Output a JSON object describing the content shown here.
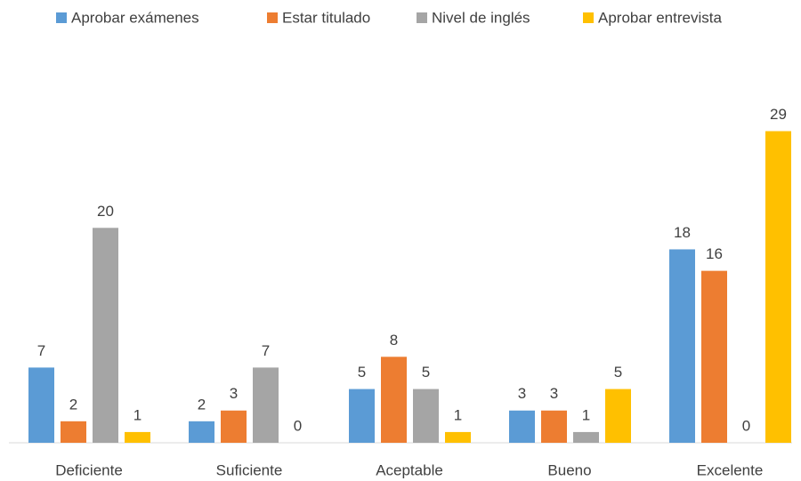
{
  "chart_data": {
    "type": "bar",
    "categories": [
      "Deficiente",
      "Suficiente",
      "Aceptable",
      "Bueno",
      "Excelente"
    ],
    "series": [
      {
        "name": "Aprobar exámenes",
        "color": "#5b9bd5",
        "values": [
          7,
          2,
          5,
          3,
          18
        ]
      },
      {
        "name": "Estar titulado",
        "color": "#ed7d31",
        "values": [
          2,
          3,
          8,
          3,
          16
        ]
      },
      {
        "name": "Nivel de inglés",
        "color": "#a5a5a5",
        "values": [
          20,
          7,
          5,
          1,
          0
        ]
      },
      {
        "name": "Aprobar entrevista",
        "color": "#ffc000",
        "values": [
          1,
          0,
          1,
          5,
          29
        ]
      }
    ],
    "ylim": [
      0,
      35
    ],
    "legend": "top"
  }
}
